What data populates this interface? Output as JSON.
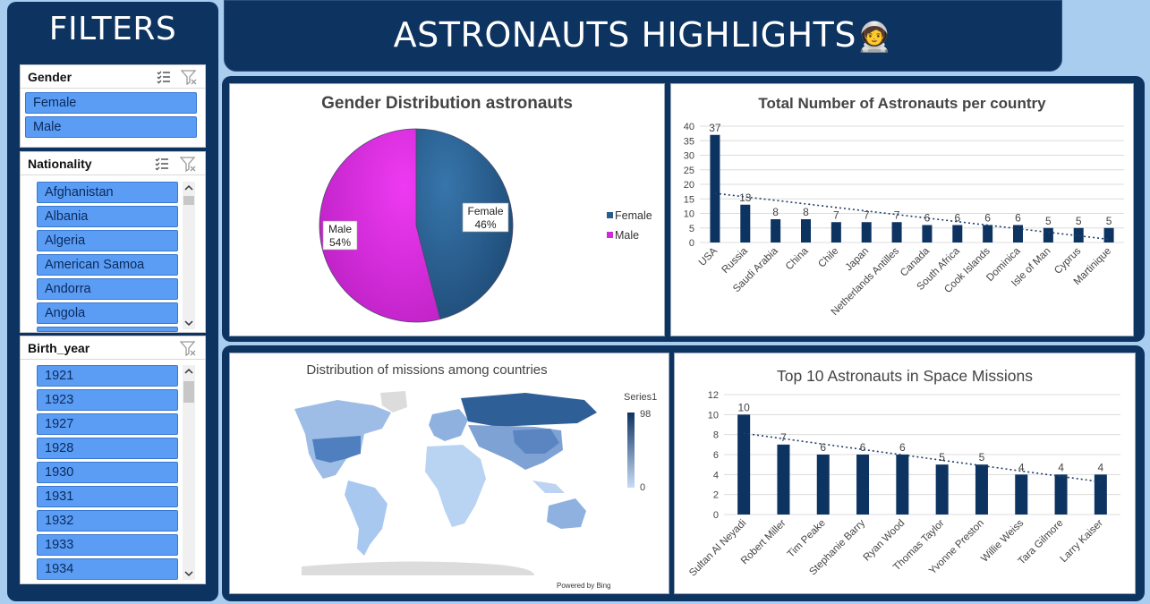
{
  "filters": {
    "title": "FILTERS",
    "gender": {
      "title": "Gender",
      "items": [
        "Female",
        "Male"
      ]
    },
    "nationality": {
      "title": "Nationality",
      "items": [
        "Afghanistan",
        "Albania",
        "Algeria",
        "American Samoa",
        "Andorra",
        "Angola"
      ]
    },
    "birth_year": {
      "title": "Birth_year",
      "items": [
        "1921",
        "1923",
        "1927",
        "1928",
        "1930",
        "1931",
        "1932",
        "1933",
        "1934"
      ]
    }
  },
  "header": {
    "title": "ASTRONAUTS HIGHLIGHTS",
    "emoji": "🧑‍🚀"
  },
  "icons": {
    "multi_select": "multi-select-icon",
    "clear_filter": "clear-filter-icon"
  },
  "colors": {
    "panel": "#0d3361",
    "background": "#a9cdee",
    "slicer_item": "#5b9df5",
    "bar": "#0d3361",
    "female": "#285d8f",
    "male": "#d02ad6"
  },
  "chart_data": [
    {
      "type": "pie",
      "title": "Gender Distribution astronauts",
      "categories": [
        "Female",
        "Male"
      ],
      "values": [
        46,
        54
      ],
      "value_labels": [
        "46%",
        "54%"
      ],
      "legend": "right"
    },
    {
      "type": "bar",
      "title": "Total Number of Astronauts per country",
      "categories": [
        "USA",
        "Russia",
        "Saudi Arabia",
        "China",
        "Chile",
        "Japan",
        "Netherlands Antilles",
        "Canada",
        "South Africa",
        "Cook Islands",
        "Dominica",
        "Isle of Man",
        "Cyprus",
        "Martinique"
      ],
      "values": [
        37,
        13,
        8,
        8,
        7,
        7,
        7,
        6,
        6,
        6,
        6,
        5,
        5,
        5
      ],
      "ylim": [
        0,
        40
      ],
      "yticks": [
        0,
        5,
        10,
        15,
        20,
        25,
        30,
        35,
        40
      ],
      "trendline": true,
      "grid": true
    },
    {
      "type": "map",
      "title": "Distribution of missions among countries",
      "legend_title": "Series1",
      "legend_max": "98",
      "legend_min": "0",
      "credit": "Powered by Bing"
    },
    {
      "type": "bar",
      "title": "Top 10 Astronauts in Space Missions",
      "categories": [
        "Sultan Al Neyadi",
        "Robert Miller",
        "Tim Peake",
        "Stephanie Barry",
        "Ryan Wood",
        "Thomas Taylor",
        "Yvonne Preston",
        "Willie Weiss",
        "Tara Gilmore",
        "Larry Kaiser"
      ],
      "values": [
        10,
        7,
        6,
        6,
        6,
        5,
        5,
        4,
        4,
        4
      ],
      "ylim": [
        0,
        12
      ],
      "yticks": [
        0,
        2,
        4,
        6,
        8,
        10,
        12
      ],
      "trendline": true,
      "grid": true
    }
  ]
}
